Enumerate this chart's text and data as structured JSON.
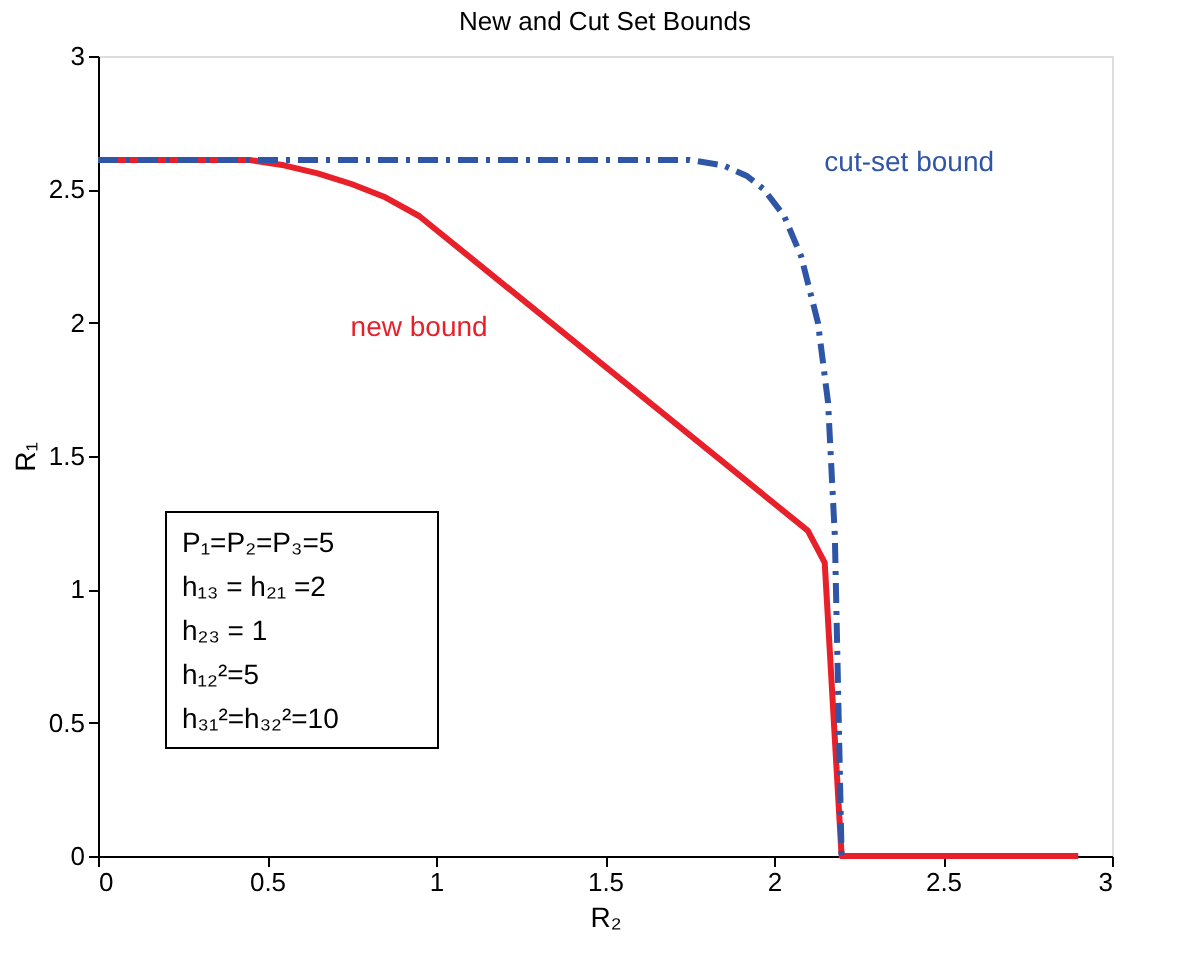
{
  "chart_data": {
    "type": "line",
    "title": "New and Cut Set Bounds",
    "xlabel": "R₂",
    "ylabel": "R₁",
    "xlim": [
      0,
      3
    ],
    "ylim": [
      0,
      3
    ],
    "xticks": [
      0,
      0.5,
      1,
      1.5,
      2,
      2.5,
      3
    ],
    "yticks": [
      0,
      0.5,
      1,
      1.5,
      2,
      2.5,
      3
    ],
    "grid": false,
    "legend": false,
    "marker": "none",
    "series": [
      {
        "name": "new bound",
        "color": "#e8202a",
        "line_style": "solid",
        "x": [
          0,
          0.45,
          0.55,
          0.65,
          0.75,
          0.85,
          0.95,
          2.1,
          2.15,
          2.2,
          2.9
        ],
        "values": [
          2.61,
          2.61,
          2.59,
          2.56,
          2.52,
          2.47,
          2.4,
          1.22,
          1.1,
          0,
          0
        ]
      },
      {
        "name": "cut-set bound",
        "color": "#2f55a6",
        "line_style": "dashed",
        "x": [
          0,
          1.75,
          1.85,
          1.92,
          1.97,
          2.03,
          2.08,
          2.13,
          2.16,
          2.18,
          2.19,
          2.2
        ],
        "values": [
          2.61,
          2.61,
          2.59,
          2.55,
          2.5,
          2.4,
          2.25,
          2.0,
          1.7,
          1.2,
          0.6,
          0
        ]
      }
    ],
    "annotations": [
      "P₁=P₂=P₃=5",
      "h₁₃ = h₂₁ =2",
      "h₂₃ = 1",
      "h₁₂²=5",
      "h₃₁²=h₃₂²=10"
    ]
  }
}
